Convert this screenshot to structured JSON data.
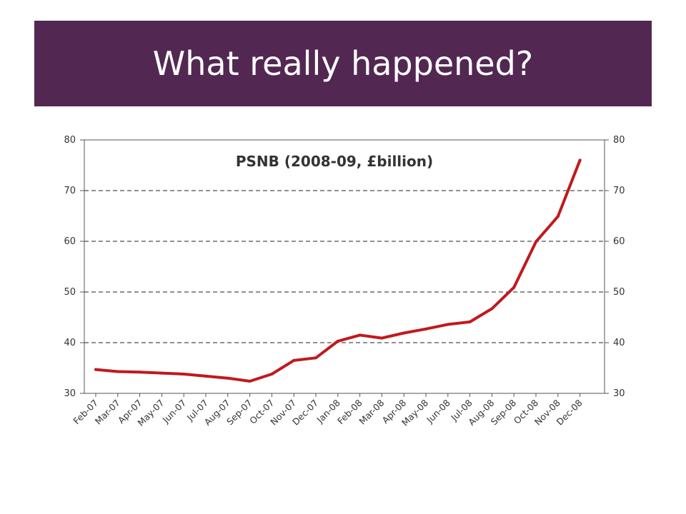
{
  "slide": {
    "title": "What really happened?"
  },
  "colors": {
    "title_bar_bg": "#522852",
    "title_text": "#ffffff",
    "line": "#c0191e",
    "axis": "#555555",
    "grid": "#222222"
  },
  "chart_data": {
    "type": "line",
    "title": "PSNB (2008-09, £billion)",
    "xlabel": "",
    "ylabel": "",
    "ylim": [
      30,
      80
    ],
    "yticks": [
      30,
      40,
      50,
      60,
      70,
      80
    ],
    "dual_y_axis": true,
    "grid": "horizontal-dashed",
    "categories": [
      "Feb-07",
      "Mar-07",
      "Apr-07",
      "May-07",
      "Jun-07",
      "Jul-07",
      "Aug-07",
      "Sep-07",
      "Oct-07",
      "Nov-07",
      "Dec-07",
      "Jan-08",
      "Feb-08",
      "Mar-08",
      "Apr-08",
      "May-08",
      "Jun-08",
      "Jul-08",
      "Aug-08",
      "Sep-08",
      "Oct-08",
      "Nov-08",
      "Dec-08"
    ],
    "series": [
      {
        "name": "",
        "values": [
          34.7,
          34.3,
          34.2,
          34.0,
          33.8,
          33.4,
          33.0,
          32.4,
          33.8,
          36.5,
          37.0,
          40.3,
          41.5,
          40.9,
          41.9,
          42.7,
          43.6,
          44.1,
          46.7,
          50.9,
          59.9,
          64.9,
          76.0
        ]
      }
    ]
  }
}
